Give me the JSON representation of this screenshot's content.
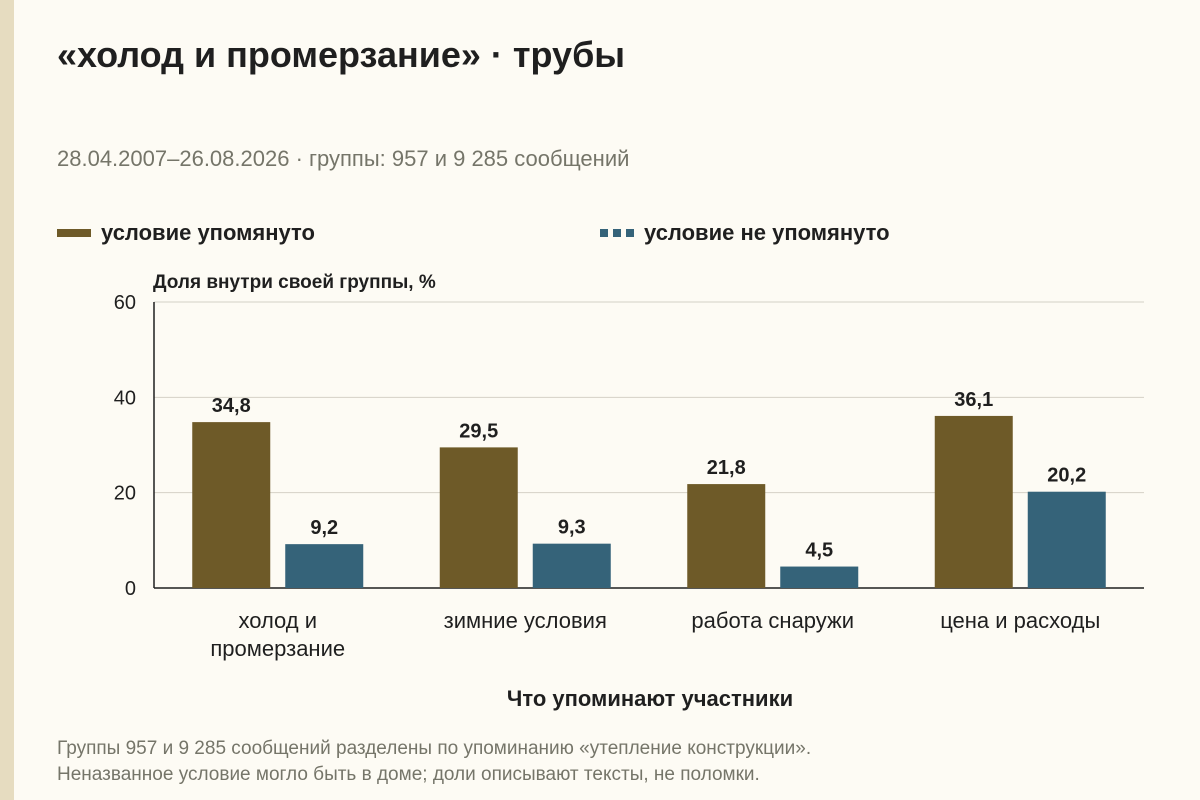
{
  "title": "«холод и промерзание» · трубы",
  "subtitle": "28.04.2007–26.08.2026 · группы: 957 и 9 285 сообщений",
  "legend": [
    {
      "label": "условие упомянуто",
      "color": "#6e5a28"
    },
    {
      "label": "условие не упомянуто",
      "color": "#356379"
    }
  ],
  "notes": [
    "Группы 957 и 9 285 сообщений разделены по упоминанию «утепление конструкции».",
    "Неназванное условие могло быть в доме; доли описывают тексты, не поломки."
  ],
  "chart_data": {
    "type": "bar",
    "ylabel": "Доля внутри своей группы, %",
    "xlabel": "Что упоминают участники",
    "ylim": [
      0,
      60
    ],
    "yticks": [
      0,
      20,
      40,
      60
    ],
    "grid": true,
    "legend_position": "top",
    "categories": [
      [
        "холод и",
        "промерзание"
      ],
      [
        "зимние условия"
      ],
      [
        "работа снаружи"
      ],
      [
        "цена и расходы"
      ]
    ],
    "series": [
      {
        "name": "условие упомянуто",
        "color": "#6e5a28",
        "values": [
          34.8,
          29.5,
          21.8,
          36.1
        ],
        "labels": [
          "34,8",
          "29,5",
          "21,8",
          "36,1"
        ]
      },
      {
        "name": "условие не упомянуто",
        "color": "#356379",
        "values": [
          9.2,
          9.3,
          4.5,
          20.2
        ],
        "labels": [
          "9,2",
          "9,3",
          "4,5",
          "20,2"
        ]
      }
    ]
  }
}
